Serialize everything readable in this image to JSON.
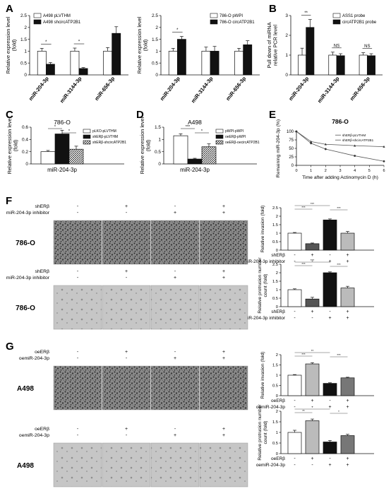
{
  "chart_data": [
    {
      "id": "A1",
      "type": "bar",
      "panel": "A",
      "ylabel": "Relative expression level (fold)",
      "ylim": [
        0,
        2.5
      ],
      "ticks": [
        0,
        0.5,
        1,
        1.5,
        2,
        2.5
      ],
      "categories": [
        "miR-204-3p",
        "miR-3144-3p",
        "miR-656-3p"
      ],
      "legend": "top-left",
      "series": [
        {
          "name": "A498 pLVTHM",
          "fill": "#ffffff",
          "values": [
            1.0,
            1.0,
            1.0
          ],
          "err": [
            0.12,
            0.13,
            0.15
          ]
        },
        {
          "name": "A498 shcircATP2B1",
          "fill": "#111111",
          "values": [
            0.45,
            0.27,
            1.75
          ],
          "err": [
            0.07,
            0.04,
            0.28
          ]
        }
      ],
      "annotations": [
        {
          "text": "*",
          "group": 0
        },
        {
          "text": "*",
          "group": 1
        }
      ]
    },
    {
      "id": "A2",
      "type": "bar",
      "panel": "A",
      "ylabel": "Relative expression level (fold)",
      "ylim": [
        0,
        2.5
      ],
      "ticks": [
        0,
        0.5,
        1,
        1.5,
        2,
        2.5
      ],
      "categories": [
        "miR-204-3p",
        "miR-3144-3p",
        "miR-656-3p"
      ],
      "legend": "top-right",
      "series": [
        {
          "name": "786-O pWPI",
          "fill": "#ffffff",
          "values": [
            1.0,
            1.0,
            1.0
          ],
          "err": [
            0.12,
            0.17,
            0.12
          ]
        },
        {
          "name": "786-O circATP2B1",
          "fill": "#111111",
          "values": [
            1.5,
            1.0,
            1.27
          ],
          "err": [
            0.12,
            0.2,
            0.17
          ]
        }
      ],
      "annotations": [
        {
          "text": "*",
          "group": 0
        }
      ]
    },
    {
      "id": "B",
      "type": "bar",
      "panel": "B",
      "ylabel": "Pull down of miRNA relative PCR level",
      "ylim": [
        0,
        3
      ],
      "ticks": [
        0,
        1,
        2,
        3
      ],
      "categories": [
        "miR-204-3p",
        "miR-3144-3p",
        "miR-656-3p"
      ],
      "legend": "top-right",
      "series": [
        {
          "name": "ASS1 probe",
          "fill": "#ffffff",
          "values": [
            1.0,
            1.0,
            1.0
          ],
          "err": [
            0.35,
            0.15,
            0.12
          ]
        },
        {
          "name": "circATP2B1 probe",
          "fill": "#111111",
          "values": [
            2.4,
            0.97,
            0.97
          ],
          "err": [
            0.4,
            0.1,
            0.1
          ]
        }
      ],
      "annotations": [
        {
          "text": "**",
          "group": 0
        },
        {
          "text": "NS",
          "group": 1
        },
        {
          "text": "NS",
          "group": 2
        }
      ]
    },
    {
      "id": "C",
      "type": "bar",
      "panel": "C",
      "title": "786-O",
      "ylabel": "Relative expression level (fold)",
      "ylim": [
        0,
        0.6
      ],
      "ticks": [
        0,
        0.2,
        0.4,
        0.6
      ],
      "xlabel": "miR-204-3p",
      "legend": "top-right",
      "series": [
        {
          "name": "pLKO-pLVTHM",
          "fill": "#ffffff",
          "values": [
            0.2
          ],
          "err": [
            0.02
          ]
        },
        {
          "name": "shERβ-pLVTHM",
          "fill": "#111111",
          "values": [
            0.49
          ],
          "err": [
            0.06
          ]
        },
        {
          "name": "shERβ-shcircATP2B1",
          "fill": "hatch",
          "values": [
            0.24
          ],
          "err": [
            0.05
          ]
        }
      ],
      "annotations": [
        "*",
        "*"
      ]
    },
    {
      "id": "D",
      "type": "bar",
      "panel": "D",
      "title": "A498",
      "ylabel": "Relative expression level (fold)",
      "ylim": [
        0,
        1.5
      ],
      "ticks": [
        0,
        0.5,
        1,
        1.5
      ],
      "xlabel": "miR-204-3p",
      "legend": "top-right",
      "series": [
        {
          "name": "pWPI-pWPI",
          "fill": "#ffffff",
          "values": [
            1.15
          ],
          "err": [
            0.08
          ]
        },
        {
          "name": "oeERβ-pWPI",
          "fill": "#111111",
          "values": [
            0.2
          ],
          "err": [
            0.03
          ]
        },
        {
          "name": "oeERβ-oecircATP2B1",
          "fill": "hatch",
          "values": [
            0.7
          ],
          "err": [
            0.12
          ]
        }
      ],
      "annotations": [
        "***",
        "*"
      ]
    },
    {
      "id": "E",
      "type": "line",
      "panel": "E",
      "title": "786-O",
      "ylabel": "Remaining miR-204-3p (%)",
      "xlabel": "Time after adding Actinomycin D (h)",
      "ylim": [
        0,
        100
      ],
      "ticks": [
        0,
        25,
        50,
        75,
        100
      ],
      "xlim": [
        0,
        6
      ],
      "xticks": [
        0,
        1,
        2,
        3,
        4,
        5,
        6
      ],
      "legend": "top-right",
      "series": [
        {
          "name": "shERβ-pLVTHM",
          "marker": "circle",
          "x": [
            0,
            1,
            2,
            4,
            6
          ],
          "values": [
            100,
            65,
            48,
            28,
            12
          ]
        },
        {
          "name": "shERβ-shcircATP2B1",
          "marker": "triangle",
          "x": [
            0,
            1,
            2,
            4,
            6
          ],
          "values": [
            100,
            70,
            62,
            58,
            55
          ]
        }
      ]
    },
    {
      "id": "F1",
      "type": "bar",
      "panel": "F",
      "ylabel": "Relative invasion (fold)",
      "ylim": [
        0,
        2.5
      ],
      "ticks": [
        0,
        0.5,
        1,
        1.5,
        2,
        2.5
      ],
      "fills": [
        "#ffffff",
        "#555555",
        "#111111",
        "#bbbbbb"
      ],
      "values": [
        1.0,
        0.38,
        1.78,
        1.0
      ],
      "err": [
        0.04,
        0.04,
        0.06,
        0.1
      ],
      "annotations": [
        "***",
        "***",
        "***"
      ],
      "conditions": {
        "row1_label": "shERβ",
        "row1": [
          "-",
          "+",
          "-",
          "+"
        ],
        "row2_label": "miR-204-3p inhibitor",
        "row2": [
          "-",
          "-",
          "+",
          "+"
        ]
      }
    },
    {
      "id": "F2",
      "type": "bar",
      "panel": "F",
      "ylabel": "Relative protrusion number count (fold)",
      "ylim": [
        0,
        2.5
      ],
      "ticks": [
        0,
        0.5,
        1,
        1.5,
        2,
        2.5
      ],
      "fills": [
        "#ffffff",
        "#555555",
        "#111111",
        "#bbbbbb"
      ],
      "values": [
        1.0,
        0.45,
        2.0,
        1.1
      ],
      "err": [
        0.05,
        0.1,
        0.05,
        0.1
      ],
      "annotations": [
        "***",
        "***",
        "***"
      ],
      "conditions": {
        "row1_label": "shERβ",
        "row1": [
          "-",
          "+",
          "-",
          "+"
        ],
        "row2_label": "miR-204-3p inhibitor",
        "row2": [
          "-",
          "-",
          "+",
          "+"
        ]
      }
    },
    {
      "id": "G1",
      "type": "bar",
      "panel": "G",
      "ylabel": "Relative invasion (fold)",
      "ylim": [
        0,
        2
      ],
      "ticks": [
        0,
        0.5,
        1,
        1.5,
        2
      ],
      "fills": [
        "#ffffff",
        "#bbbbbb",
        "#111111",
        "#777777"
      ],
      "values": [
        1.0,
        1.55,
        0.6,
        0.87
      ],
      "err": [
        0.03,
        0.06,
        0.03,
        0.03
      ],
      "annotations": [
        "***",
        "**",
        "***"
      ],
      "conditions": {
        "row1_label": "oeERβ",
        "row1": [
          "-",
          "+",
          "-",
          "+"
        ],
        "row2_label": "oemiR-204-3p",
        "row2": [
          "-",
          "-",
          "+",
          "+"
        ]
      }
    },
    {
      "id": "G2",
      "type": "bar",
      "panel": "G",
      "ylabel": "Relative protrusion number count (fold)",
      "ylim": [
        0,
        2
      ],
      "ticks": [
        0,
        0.5,
        1,
        1.5,
        2
      ],
      "fills": [
        "#ffffff",
        "#bbbbbb",
        "#111111",
        "#777777"
      ],
      "values": [
        1.0,
        1.55,
        0.55,
        0.85
      ],
      "err": [
        0.1,
        0.08,
        0.07,
        0.06
      ],
      "annotations": [
        "**",
        "*",
        "*"
      ],
      "conditions": {
        "row1_label": "oeERβ",
        "row1": [
          "-",
          "+",
          "-",
          "+"
        ],
        "row2_label": "oemiR-204-3p",
        "row2": [
          "-",
          "-",
          "+",
          "+"
        ]
      }
    }
  ],
  "panels": {
    "letters": [
      "A",
      "B",
      "C",
      "D",
      "E",
      "F",
      "G"
    ]
  },
  "micro": {
    "F_labels": {
      "row1": "shERβ",
      "row2": "miR-204-3p inhibitor",
      "cell": "786-O"
    },
    "G_labels": {
      "row1": "oeERβ",
      "row2": "oemiR-204-3p",
      "cell": "A498"
    },
    "F_signs": {
      "row1": [
        "-",
        "+",
        "-",
        "+"
      ],
      "row2": [
        "-",
        "-",
        "+",
        "+"
      ]
    },
    "G_signs": {
      "row1": [
        "-",
        "+",
        "-",
        "+"
      ],
      "row2": [
        "-",
        "-",
        "+",
        "+"
      ]
    }
  }
}
